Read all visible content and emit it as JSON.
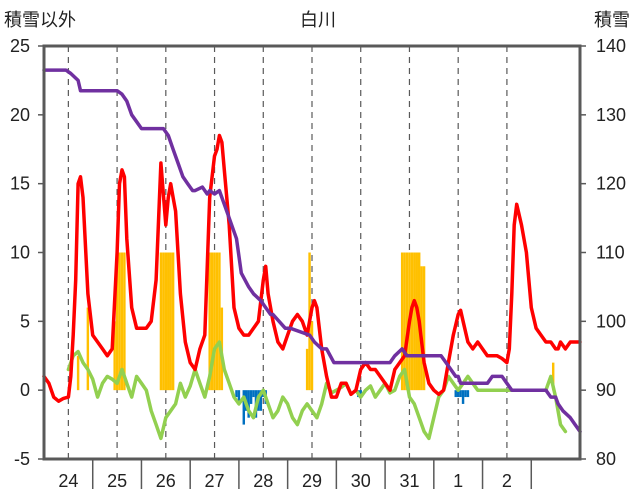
{
  "chart_data": {
    "type": "line",
    "title": "白川",
    "ylabel_left": "積雪以外",
    "ylabel_right": "積雪",
    "x_tick_labels": [
      "24",
      "25",
      "26",
      "27",
      "28",
      "29",
      "30",
      "31",
      "1",
      "2"
    ],
    "x_range": [
      23.5,
      34.5
    ],
    "y_left_ticks": [
      25,
      20,
      15,
      10,
      5,
      0,
      -5
    ],
    "y_left_range": [
      -5,
      25
    ],
    "y_right_ticks": [
      140,
      130,
      120,
      110,
      100,
      90,
      80
    ],
    "y_right_range": [
      80,
      140
    ],
    "grid": "vertical-dashed",
    "series": [
      {
        "axis": "left",
        "kind": "bar",
        "color": "#FFC000",
        "x": [
          24.2,
          24.4,
          24.95,
          25.0,
          25.05,
          25.1,
          25.15,
          25.9,
          25.95,
          26.0,
          26.05,
          26.1,
          26.15,
          26.9,
          26.95,
          27.0,
          27.05,
          27.1,
          27.15,
          28.9,
          28.95,
          29.0,
          30.85,
          30.9,
          30.95,
          31.0,
          31.05,
          31.1,
          31.15,
          31.2,
          31.25,
          31.3,
          33.95
        ],
        "y": [
          2.5,
          6,
          5,
          10,
          10,
          10,
          10,
          10,
          10,
          10,
          10,
          10,
          10,
          10,
          10,
          10,
          10,
          10,
          6,
          3,
          10,
          5,
          10,
          10,
          10,
          10,
          10,
          10,
          10,
          10,
          9,
          9,
          2
        ]
      },
      {
        "axis": "left",
        "kind": "bar",
        "color": "#0070C0",
        "x": [
          27.45,
          27.5,
          27.6,
          27.65,
          27.7,
          27.75,
          27.8,
          27.85,
          27.9,
          27.95,
          28.0,
          28.05,
          29.95,
          30.0,
          31.95,
          32.0,
          32.05,
          32.1,
          32.15,
          32.2
        ],
        "y": [
          -0.5,
          -1,
          -2.5,
          -1.5,
          -2,
          -1,
          -0.5,
          -2,
          -1.5,
          -1.5,
          -0.5,
          -1,
          -0.5,
          -0.5,
          -0.5,
          -0.5,
          -0.5,
          -1,
          -0.5,
          -0.5
        ]
      },
      {
        "axis": "left",
        "kind": "line",
        "color": "#92D050",
        "x": [
          24.0,
          24.1,
          24.2,
          24.3,
          24.4,
          24.5,
          24.6,
          24.7,
          24.8,
          24.9,
          25.0,
          25.1,
          25.2,
          25.3,
          25.4,
          25.5,
          25.6,
          25.7,
          25.8,
          25.9,
          26.0,
          26.1,
          26.2,
          26.3,
          26.4,
          26.5,
          26.6,
          26.7,
          26.8,
          26.9,
          27.0,
          27.1,
          27.2,
          27.3,
          27.4,
          27.5,
          27.6,
          27.7,
          27.8,
          27.9,
          28.0,
          28.1,
          28.2,
          28.3,
          28.4,
          28.5,
          28.6,
          28.7,
          28.8,
          28.9,
          29.0,
          29.1,
          29.2,
          29.3,
          29.4,
          29.5,
          29.6,
          29.7,
          29.8,
          29.9,
          30.0,
          30.1,
          30.2,
          30.3,
          30.4,
          30.5,
          30.6,
          30.7,
          30.8,
          30.9,
          31.0,
          31.1,
          31.2,
          31.3,
          31.4,
          31.5,
          31.6,
          31.7,
          31.8,
          31.9,
          32.0,
          32.1,
          32.2,
          32.3,
          32.4,
          32.5,
          32.6,
          32.7,
          32.8,
          32.9,
          33.0,
          33.1,
          33.2,
          33.3,
          33.4,
          33.5,
          33.6,
          33.7,
          33.8,
          33.9,
          34.0,
          34.1,
          34.2
        ],
        "y": [
          1.5,
          2.5,
          2.8,
          2,
          1.5,
          0.8,
          -0.5,
          0.5,
          1,
          0.8,
          0.5,
          1.5,
          0.5,
          -0.5,
          1,
          0.5,
          0,
          -1.5,
          -2.5,
          -3.5,
          -2,
          -1.5,
          -1,
          0.5,
          -0.5,
          0.3,
          1.5,
          0.5,
          -0.5,
          1,
          3,
          3.5,
          1.5,
          0.5,
          -0.5,
          -1,
          -0.5,
          -1.5,
          -2,
          -0.5,
          0,
          -1,
          -2,
          -1.5,
          -0.5,
          -1,
          -2,
          -2.5,
          -1.5,
          -1,
          -1.5,
          -2,
          -1,
          0.5,
          -0.2,
          0,
          0.2,
          0.5,
          -0.3,
          0,
          -0.5,
          0,
          0.3,
          -0.5,
          0,
          0.5,
          -0.2,
          0,
          1,
          1.5,
          -0.5,
          -1,
          -2,
          -3,
          -3.5,
          -2,
          -0.5,
          0,
          1,
          0.5,
          0,
          0.5,
          1,
          0.5,
          0,
          0,
          0,
          0,
          0,
          0,
          0,
          0,
          0,
          0,
          0,
          0,
          0,
          0,
          0,
          1,
          -0.5,
          -2.5,
          -3
        ]
      },
      {
        "axis": "left",
        "kind": "line",
        "color": "#FF0000",
        "x": [
          23.5,
          23.6,
          23.7,
          23.8,
          23.9,
          24.0,
          24.05,
          24.1,
          24.15,
          24.2,
          24.25,
          24.3,
          24.4,
          24.5,
          24.6,
          24.7,
          24.8,
          24.9,
          25.0,
          25.05,
          25.1,
          25.15,
          25.2,
          25.3,
          25.4,
          25.5,
          25.6,
          25.7,
          25.8,
          25.9,
          26.0,
          26.05,
          26.1,
          26.15,
          26.2,
          26.3,
          26.4,
          26.5,
          26.6,
          26.7,
          26.8,
          26.9,
          27.0,
          27.05,
          27.1,
          27.15,
          27.2,
          27.3,
          27.4,
          27.5,
          27.6,
          27.7,
          27.8,
          27.9,
          28.0,
          28.05,
          28.1,
          28.2,
          28.3,
          28.4,
          28.5,
          28.6,
          28.7,
          28.8,
          28.9,
          29.0,
          29.05,
          29.1,
          29.2,
          29.3,
          29.4,
          29.5,
          29.6,
          29.7,
          29.8,
          29.9,
          30.0,
          30.1,
          30.2,
          30.3,
          30.4,
          30.5,
          30.6,
          30.7,
          30.8,
          30.9,
          31.0,
          31.05,
          31.1,
          31.15,
          31.2,
          31.3,
          31.4,
          31.5,
          31.6,
          31.7,
          31.8,
          31.9,
          32.0,
          32.05,
          32.1,
          32.2,
          32.3,
          32.4,
          32.5,
          32.6,
          32.7,
          32.8,
          32.9,
          33.0,
          33.05,
          33.1,
          33.15,
          33.2,
          33.3,
          33.4,
          33.5,
          33.6,
          33.7,
          33.8,
          33.9,
          34.0,
          34.05,
          34.1,
          34.2,
          34.3,
          34.4,
          34.5
        ],
        "y": [
          1,
          0.5,
          -0.5,
          -0.8,
          -0.6,
          -0.5,
          1,
          4,
          8,
          15,
          15.5,
          14,
          7,
          4,
          3.5,
          3,
          2.5,
          3,
          10,
          15,
          16,
          15.5,
          11,
          6,
          4.5,
          4.5,
          4.5,
          5,
          8,
          16.5,
          12,
          14,
          15,
          14,
          13,
          7,
          3.5,
          2,
          1.5,
          3,
          4,
          14,
          17,
          17.5,
          18.5,
          18,
          16,
          12,
          6,
          4.5,
          4,
          4,
          4.5,
          5,
          8,
          9,
          7,
          5,
          3.5,
          3,
          4,
          5,
          5.5,
          5,
          4,
          6,
          6.5,
          6,
          3,
          1,
          -0.5,
          -0.5,
          0.5,
          0.5,
          -0.3,
          0,
          1.5,
          2,
          1.5,
          1.5,
          1,
          0.5,
          0,
          1.5,
          2,
          2.5,
          5,
          6,
          6.5,
          6,
          5,
          2,
          0.5,
          0,
          -0.3,
          0,
          2,
          4,
          5.5,
          5.8,
          5,
          3.5,
          3,
          3.5,
          3,
          2.5,
          2.5,
          2.5,
          2.3,
          2,
          3,
          7,
          12,
          13.5,
          12,
          10,
          6,
          4.5,
          4,
          3.5,
          3.5,
          3,
          3,
          3.5,
          3,
          3.5,
          3.5,
          3.5
        ]
      },
      {
        "axis": "right",
        "kind": "line",
        "color": "#7030A0",
        "x": [
          23.5,
          23.95,
          24.05,
          24.2,
          24.25,
          25.0,
          25.1,
          25.2,
          25.3,
          25.4,
          25.5,
          25.75,
          25.85,
          25.95,
          26.05,
          26.15,
          26.25,
          26.35,
          26.45,
          26.55,
          26.6,
          26.75,
          26.85,
          26.9,
          27.0,
          27.1,
          27.2,
          27.3,
          27.45,
          27.55,
          27.7,
          27.8,
          27.95,
          28.05,
          28.15,
          28.2,
          28.45,
          28.55,
          28.95,
          29.05,
          29.2,
          29.3,
          29.45,
          29.55,
          29.85,
          29.95,
          30.05,
          30.15,
          30.3,
          30.5,
          30.6,
          30.7,
          30.85,
          30.95,
          31.05,
          31.15,
          31.3,
          31.5,
          31.65,
          31.75,
          31.85,
          31.95,
          32.0,
          32.05,
          32.15,
          32.3,
          32.45,
          32.6,
          32.7,
          32.8,
          32.9,
          33.0,
          33.1,
          33.35,
          33.45,
          33.5,
          33.55,
          33.7,
          33.8,
          33.9,
          34.0,
          34.05,
          34.15,
          34.3,
          34.4,
          34.5
        ],
        "y": [
          136.5,
          136.5,
          136,
          135,
          133.5,
          133.5,
          133,
          132,
          130,
          129,
          128,
          128,
          128,
          128,
          127,
          125,
          123,
          121,
          120,
          119,
          119,
          119.5,
          118.5,
          119,
          118.5,
          119,
          117,
          115,
          112,
          107,
          105,
          104,
          103,
          102,
          101,
          101,
          99,
          99,
          98,
          97,
          96,
          96,
          94,
          94,
          94,
          94,
          94,
          94,
          94,
          94,
          94,
          95,
          96,
          95,
          95,
          95,
          95,
          95,
          95,
          94,
          93,
          92,
          92,
          91,
          91,
          91,
          91,
          91,
          92,
          92,
          92,
          91,
          90,
          90,
          90,
          90,
          90,
          90,
          90,
          89,
          89,
          88,
          87,
          86,
          85,
          84
        ]
      }
    ]
  }
}
